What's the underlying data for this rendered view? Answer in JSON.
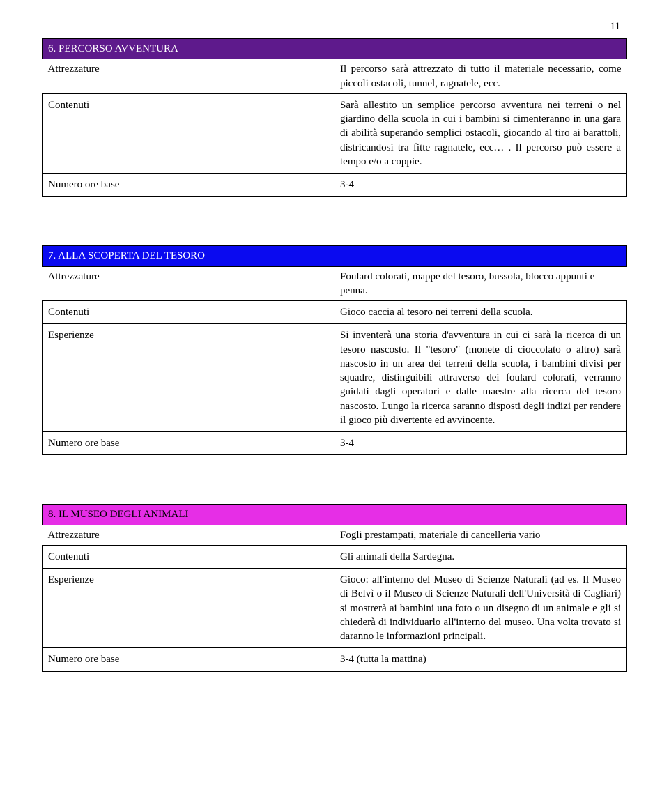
{
  "page_number": "11",
  "sections": [
    {
      "id": "s6",
      "header": "6. PERCORSO AVVENTURA",
      "header_class": "hdr-purple",
      "rows": [
        {
          "label": "Attrezzature",
          "text": "Il percorso sarà attrezzato di tutto il materiale necessario, come piccoli ostacoli, tunnel, ragnatele, ecc.",
          "noborder": true,
          "justify": true
        },
        {
          "label": "Contenuti",
          "text": "Sarà allestito un semplice percorso avventura nei terreni o nel giardino della scuola in cui i bambini si cimenteranno in una gara di abilità superando semplici ostacoli, giocando al tiro ai barattoli, districandosi tra fitte ragnatele, ecc… . Il percorso può essere a tempo e/o a coppie.",
          "justify": true
        },
        {
          "label": "Numero ore base",
          "text": "3-4"
        }
      ]
    },
    {
      "id": "s7",
      "header": "7. ALLA SCOPERTA DEL TESORO",
      "header_class": "hdr-blue",
      "rows": [
        {
          "label": "Attrezzature",
          "text": "Foulard colorati, mappe del tesoro, bussola, blocco appunti e penna.",
          "noborder": true
        },
        {
          "label": "Contenuti",
          "text": "Gioco caccia al tesoro nei terreni della scuola."
        },
        {
          "label": "Esperienze",
          "text": "Si inventerà una storia d'avventura in cui ci sarà la ricerca di un tesoro nascosto. Il \"tesoro\" (monete di cioccolato o altro) sarà nascosto in un area dei terreni della scuola, i bambini divisi per squadre, distinguibili attraverso dei  foulard colorati, verranno guidati dagli operatori e dalle maestre alla ricerca del tesoro nascosto. Lungo la ricerca saranno disposti degli indizi per rendere il gioco più divertente ed avvincente.",
          "justify": true
        },
        {
          "label": "Numero ore base",
          "text": "3-4"
        }
      ]
    },
    {
      "id": "s8",
      "header": "8. IL MUSEO DEGLI ANIMALI",
      "header_class": "hdr-pink",
      "rows": [
        {
          "label": "Attrezzature",
          "text": "Fogli prestampati, materiale di cancelleria vario",
          "noborder": true
        },
        {
          "label": "Contenuti",
          "text": "Gli animali della Sardegna."
        },
        {
          "label": "Esperienze",
          "text": "Gioco: all'interno del Museo di Scienze Naturali (ad es. Il Museo di Belvì o il Museo di Scienze Naturali dell'Università di Cagliari) si mostrerà ai bambini una foto o un disegno di un animale e gli si chiederà di individuarlo all'interno del museo. Una volta trovato si daranno le informazioni principali.",
          "justify": true
        },
        {
          "label": "Numero ore base",
          "text": "3-4 (tutta la mattina)"
        }
      ]
    }
  ]
}
